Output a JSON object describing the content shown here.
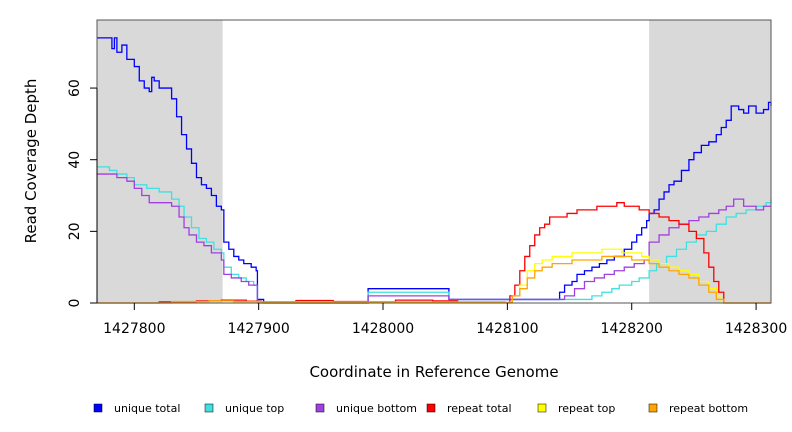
{
  "chart_data": {
    "type": "line",
    "xlabel": "Coordinate in Reference Genome",
    "ylabel": "Read Coverage Depth",
    "xlim": [
      1427770,
      1428312
    ],
    "ylim": [
      0,
      79
    ],
    "xticks": [
      1427800,
      1427900,
      1428000,
      1428100,
      1428200,
      1428300
    ],
    "yticks": [
      0,
      20,
      40,
      60
    ],
    "shaded_regions": [
      {
        "x0": 1427770,
        "x1": 1427871,
        "color": "#d9d9d9"
      },
      {
        "x0": 1428214,
        "x1": 1428312,
        "color": "#d9d9d9"
      }
    ],
    "legend_position": "bottom",
    "series": [
      {
        "name": "unique total",
        "color": "#0000ff",
        "points": [
          [
            1427770,
            74
          ],
          [
            1427780,
            74
          ],
          [
            1427782,
            71
          ],
          [
            1427784,
            74
          ],
          [
            1427786,
            70
          ],
          [
            1427790,
            72
          ],
          [
            1427794,
            68
          ],
          [
            1427800,
            66
          ],
          [
            1427804,
            62
          ],
          [
            1427808,
            60
          ],
          [
            1427812,
            59
          ],
          [
            1427814,
            63
          ],
          [
            1427816,
            62
          ],
          [
            1427820,
            60
          ],
          [
            1427826,
            60
          ],
          [
            1427830,
            57
          ],
          [
            1427834,
            52
          ],
          [
            1427838,
            47
          ],
          [
            1427842,
            43
          ],
          [
            1427846,
            39
          ],
          [
            1427850,
            35
          ],
          [
            1427854,
            33
          ],
          [
            1427858,
            32
          ],
          [
            1427862,
            30
          ],
          [
            1427866,
            27
          ],
          [
            1427870,
            26
          ],
          [
            1427872,
            17
          ],
          [
            1427876,
            15
          ],
          [
            1427880,
            13
          ],
          [
            1427884,
            12
          ],
          [
            1427888,
            11
          ],
          [
            1427894,
            10
          ],
          [
            1427898,
            9
          ],
          [
            1427899,
            1
          ],
          [
            1427904,
            0
          ],
          [
            1427988,
            0
          ],
          [
            1427988,
            4
          ],
          [
            1428053,
            4
          ],
          [
            1428053,
            1
          ],
          [
            1428100,
            1
          ],
          [
            1428140,
            1
          ],
          [
            1428142,
            3
          ],
          [
            1428146,
            5
          ],
          [
            1428152,
            6
          ],
          [
            1428156,
            8
          ],
          [
            1428162,
            9
          ],
          [
            1428168,
            10
          ],
          [
            1428174,
            11
          ],
          [
            1428180,
            12
          ],
          [
            1428186,
            13
          ],
          [
            1428194,
            15
          ],
          [
            1428200,
            17
          ],
          [
            1428204,
            19
          ],
          [
            1428208,
            21
          ],
          [
            1428212,
            23
          ],
          [
            1428214,
            25
          ],
          [
            1428218,
            26
          ],
          [
            1428222,
            29
          ],
          [
            1428226,
            31
          ],
          [
            1428230,
            33
          ],
          [
            1428234,
            34
          ],
          [
            1428240,
            37
          ],
          [
            1428246,
            40
          ],
          [
            1428250,
            42
          ],
          [
            1428256,
            44
          ],
          [
            1428262,
            45
          ],
          [
            1428268,
            47
          ],
          [
            1428272,
            49
          ],
          [
            1428276,
            51
          ],
          [
            1428280,
            55
          ],
          [
            1428286,
            54
          ],
          [
            1428290,
            53
          ],
          [
            1428294,
            55
          ],
          [
            1428300,
            53
          ],
          [
            1428306,
            54
          ],
          [
            1428310,
            56
          ],
          [
            1428312,
            55
          ]
        ]
      },
      {
        "name": "unique top",
        "color": "#40e0e0",
        "points": [
          [
            1427770,
            38
          ],
          [
            1427780,
            37
          ],
          [
            1427786,
            36
          ],
          [
            1427794,
            35
          ],
          [
            1427800,
            33
          ],
          [
            1427810,
            32
          ],
          [
            1427820,
            31
          ],
          [
            1427830,
            29
          ],
          [
            1427836,
            27
          ],
          [
            1427840,
            24
          ],
          [
            1427846,
            21
          ],
          [
            1427852,
            18
          ],
          [
            1427858,
            17
          ],
          [
            1427864,
            15
          ],
          [
            1427870,
            14
          ],
          [
            1427872,
            10
          ],
          [
            1427878,
            8
          ],
          [
            1427884,
            7
          ],
          [
            1427890,
            6
          ],
          [
            1427896,
            5
          ],
          [
            1427899,
            0
          ],
          [
            1427988,
            0
          ],
          [
            1427988,
            3
          ],
          [
            1428053,
            3
          ],
          [
            1428053,
            1
          ],
          [
            1428100,
            1
          ],
          [
            1428160,
            1
          ],
          [
            1428168,
            2
          ],
          [
            1428176,
            3
          ],
          [
            1428184,
            4
          ],
          [
            1428190,
            5
          ],
          [
            1428200,
            6
          ],
          [
            1428206,
            7
          ],
          [
            1428214,
            9
          ],
          [
            1428220,
            11
          ],
          [
            1428228,
            13
          ],
          [
            1428236,
            15
          ],
          [
            1428244,
            17
          ],
          [
            1428252,
            19
          ],
          [
            1428260,
            20
          ],
          [
            1428268,
            22
          ],
          [
            1428276,
            24
          ],
          [
            1428284,
            25
          ],
          [
            1428292,
            26
          ],
          [
            1428300,
            27
          ],
          [
            1428308,
            28
          ],
          [
            1428312,
            29
          ]
        ]
      },
      {
        "name": "unique bottom",
        "color": "#a040e0",
        "points": [
          [
            1427770,
            36
          ],
          [
            1427780,
            36
          ],
          [
            1427786,
            35
          ],
          [
            1427794,
            34
          ],
          [
            1427800,
            32
          ],
          [
            1427806,
            30
          ],
          [
            1427812,
            28
          ],
          [
            1427820,
            28
          ],
          [
            1427826,
            28
          ],
          [
            1427830,
            27
          ],
          [
            1427836,
            24
          ],
          [
            1427840,
            21
          ],
          [
            1427844,
            19
          ],
          [
            1427850,
            17
          ],
          [
            1427856,
            16
          ],
          [
            1427862,
            14
          ],
          [
            1427870,
            12
          ],
          [
            1427872,
            8
          ],
          [
            1427878,
            7
          ],
          [
            1427886,
            6
          ],
          [
            1427892,
            5
          ],
          [
            1427899,
            0
          ],
          [
            1427988,
            0
          ],
          [
            1427988,
            2
          ],
          [
            1428053,
            2
          ],
          [
            1428053,
            1
          ],
          [
            1428100,
            1
          ],
          [
            1428146,
            2
          ],
          [
            1428154,
            4
          ],
          [
            1428162,
            6
          ],
          [
            1428170,
            7
          ],
          [
            1428178,
            8
          ],
          [
            1428186,
            9
          ],
          [
            1428194,
            10
          ],
          [
            1428202,
            11
          ],
          [
            1428210,
            12
          ],
          [
            1428214,
            17
          ],
          [
            1428222,
            19
          ],
          [
            1428230,
            21
          ],
          [
            1428238,
            22
          ],
          [
            1428246,
            23
          ],
          [
            1428254,
            24
          ],
          [
            1428262,
            25
          ],
          [
            1428270,
            26
          ],
          [
            1428276,
            27
          ],
          [
            1428282,
            29
          ],
          [
            1428290,
            27
          ],
          [
            1428300,
            26
          ],
          [
            1428306,
            27
          ],
          [
            1428312,
            27
          ]
        ]
      },
      {
        "name": "repeat total",
        "color": "#ff0000",
        "points": [
          [
            1427770,
            0
          ],
          [
            1427800,
            0
          ],
          [
            1427820,
            0.3
          ],
          [
            1427850,
            0.6
          ],
          [
            1427870,
            0.8
          ],
          [
            1427890,
            0.5
          ],
          [
            1427902,
            0.3
          ],
          [
            1427930,
            0.7
          ],
          [
            1427960,
            0.4
          ],
          [
            1427988,
            0.3
          ],
          [
            1428010,
            0.8
          ],
          [
            1428040,
            0.6
          ],
          [
            1428060,
            0.2
          ],
          [
            1428098,
            0.1
          ],
          [
            1428102,
            2
          ],
          [
            1428106,
            5
          ],
          [
            1428110,
            9
          ],
          [
            1428114,
            13
          ],
          [
            1428118,
            16
          ],
          [
            1428122,
            19
          ],
          [
            1428126,
            21
          ],
          [
            1428130,
            22
          ],
          [
            1428134,
            24
          ],
          [
            1428140,
            24
          ],
          [
            1428148,
            25
          ],
          [
            1428156,
            26
          ],
          [
            1428164,
            26
          ],
          [
            1428172,
            27
          ],
          [
            1428180,
            27
          ],
          [
            1428188,
            28
          ],
          [
            1428194,
            27
          ],
          [
            1428200,
            27
          ],
          [
            1428206,
            26
          ],
          [
            1428214,
            25
          ],
          [
            1428222,
            24
          ],
          [
            1428230,
            23
          ],
          [
            1428238,
            22
          ],
          [
            1428246,
            20
          ],
          [
            1428252,
            18
          ],
          [
            1428258,
            14
          ],
          [
            1428262,
            10
          ],
          [
            1428266,
            6
          ],
          [
            1428270,
            3
          ],
          [
            1428274,
            0
          ],
          [
            1428312,
            0
          ]
        ]
      },
      {
        "name": "repeat top",
        "color": "#ffff00",
        "points": [
          [
            1427770,
            0
          ],
          [
            1428098,
            0
          ],
          [
            1428104,
            2
          ],
          [
            1428110,
            5
          ],
          [
            1428116,
            9
          ],
          [
            1428122,
            11
          ],
          [
            1428128,
            12
          ],
          [
            1428136,
            13
          ],
          [
            1428144,
            13
          ],
          [
            1428152,
            14
          ],
          [
            1428160,
            14
          ],
          [
            1428168,
            14
          ],
          [
            1428176,
            15
          ],
          [
            1428184,
            15
          ],
          [
            1428192,
            14
          ],
          [
            1428200,
            14
          ],
          [
            1428208,
            13
          ],
          [
            1428214,
            12
          ],
          [
            1428222,
            11
          ],
          [
            1428230,
            10
          ],
          [
            1428238,
            9
          ],
          [
            1428246,
            8
          ],
          [
            1428254,
            6
          ],
          [
            1428262,
            4
          ],
          [
            1428268,
            2
          ],
          [
            1428272,
            0
          ],
          [
            1428312,
            0
          ]
        ]
      },
      {
        "name": "repeat bottom",
        "color": "#ffa500",
        "points": [
          [
            1427770,
            0
          ],
          [
            1427800,
            0
          ],
          [
            1427830,
            0.4
          ],
          [
            1427860,
            0.6
          ],
          [
            1427880,
            0.4
          ],
          [
            1427902,
            0.3
          ],
          [
            1428098,
            0.2
          ],
          [
            1428104,
            2
          ],
          [
            1428110,
            4
          ],
          [
            1428116,
            7
          ],
          [
            1428122,
            9
          ],
          [
            1428128,
            10
          ],
          [
            1428136,
            11
          ],
          [
            1428144,
            11
          ],
          [
            1428152,
            12
          ],
          [
            1428160,
            12
          ],
          [
            1428168,
            12
          ],
          [
            1428176,
            13
          ],
          [
            1428184,
            13
          ],
          [
            1428192,
            13
          ],
          [
            1428200,
            12
          ],
          [
            1428208,
            12
          ],
          [
            1428214,
            11
          ],
          [
            1428222,
            10
          ],
          [
            1428230,
            9
          ],
          [
            1428238,
            8
          ],
          [
            1428246,
            7
          ],
          [
            1428254,
            5
          ],
          [
            1428262,
            3
          ],
          [
            1428268,
            1
          ],
          [
            1428274,
            0
          ],
          [
            1428312,
            0
          ]
        ]
      }
    ]
  }
}
